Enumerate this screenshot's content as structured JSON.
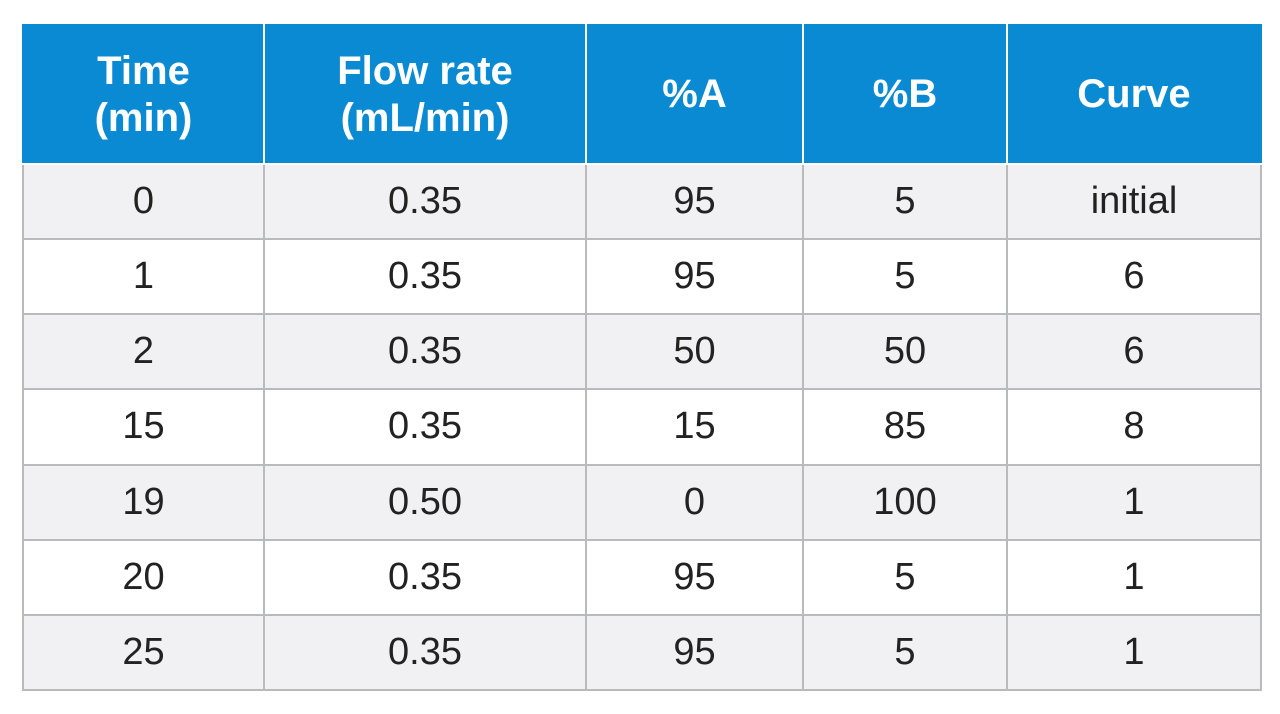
{
  "table": {
    "headers": [
      {
        "line1": "Time",
        "line2": "(min)"
      },
      {
        "line1": "Flow rate",
        "line2": "(mL/min)"
      },
      {
        "line1": "%A",
        "line2": ""
      },
      {
        "line1": "%B",
        "line2": ""
      },
      {
        "line1": "Curve",
        "line2": ""
      }
    ],
    "rows": [
      [
        "0",
        "0.35",
        "95",
        "5",
        "initial"
      ],
      [
        "1",
        "0.35",
        "95",
        "5",
        "6"
      ],
      [
        "2",
        "0.35",
        "50",
        "50",
        "6"
      ],
      [
        "15",
        "0.35",
        "15",
        "85",
        "8"
      ],
      [
        "19",
        "0.50",
        "0",
        "100",
        "1"
      ],
      [
        "20",
        "0.35",
        "95",
        "5",
        "1"
      ],
      [
        "25",
        "0.35",
        "95",
        "5",
        "1"
      ]
    ],
    "colors": {
      "header_bg": "#0a8ad2",
      "header_text": "#ffffff",
      "stripe_bg": "#f1f1f3",
      "row_bg": "#ffffff",
      "border": "#b9babc"
    }
  }
}
